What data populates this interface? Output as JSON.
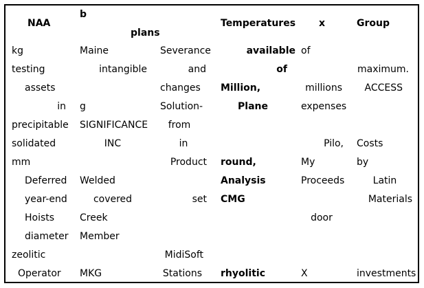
{
  "header": {
    "c1": "NAA",
    "c2a": "b",
    "c2b": "plans",
    "c4": "Temperatures",
    "c5": "x",
    "c6": "Group"
  },
  "rows": [
    [
      "kg",
      "Maine",
      "Severance",
      "available",
      "of",
      ""
    ],
    [
      "testing",
      "intangible",
      "and",
      "of",
      "",
      "maximum."
    ],
    [
      "assets",
      "",
      "changes",
      "Million,",
      "millions",
      "ACCESS"
    ],
    [
      "in",
      "g",
      "Solution-",
      "Plane",
      "expenses",
      ""
    ],
    [
      "precipitable",
      "SIGNIFICANCE",
      "from",
      "",
      "",
      ""
    ],
    [
      "solidated",
      "INC",
      "in",
      "",
      "Pilo,",
      "Costs"
    ],
    [
      "mm",
      "",
      "Product",
      "round,",
      "My",
      "by"
    ],
    [
      "Deferred",
      "Welded",
      "",
      "Analysis",
      "Proceeds",
      "Latin"
    ],
    [
      "year-end",
      "covered",
      "set",
      "CMG",
      "",
      "Materials"
    ],
    [
      "Hoists",
      "Creek",
      "",
      "",
      "door",
      ""
    ],
    [
      "diameter",
      "Member",
      "",
      "",
      "",
      ""
    ],
    [
      "zeolitic",
      "",
      "MidiSoft",
      "",
      "",
      ""
    ],
    [
      "Operator",
      "MKG",
      "Stations",
      "rhyolitic",
      "X",
      "investments"
    ]
  ]
}
